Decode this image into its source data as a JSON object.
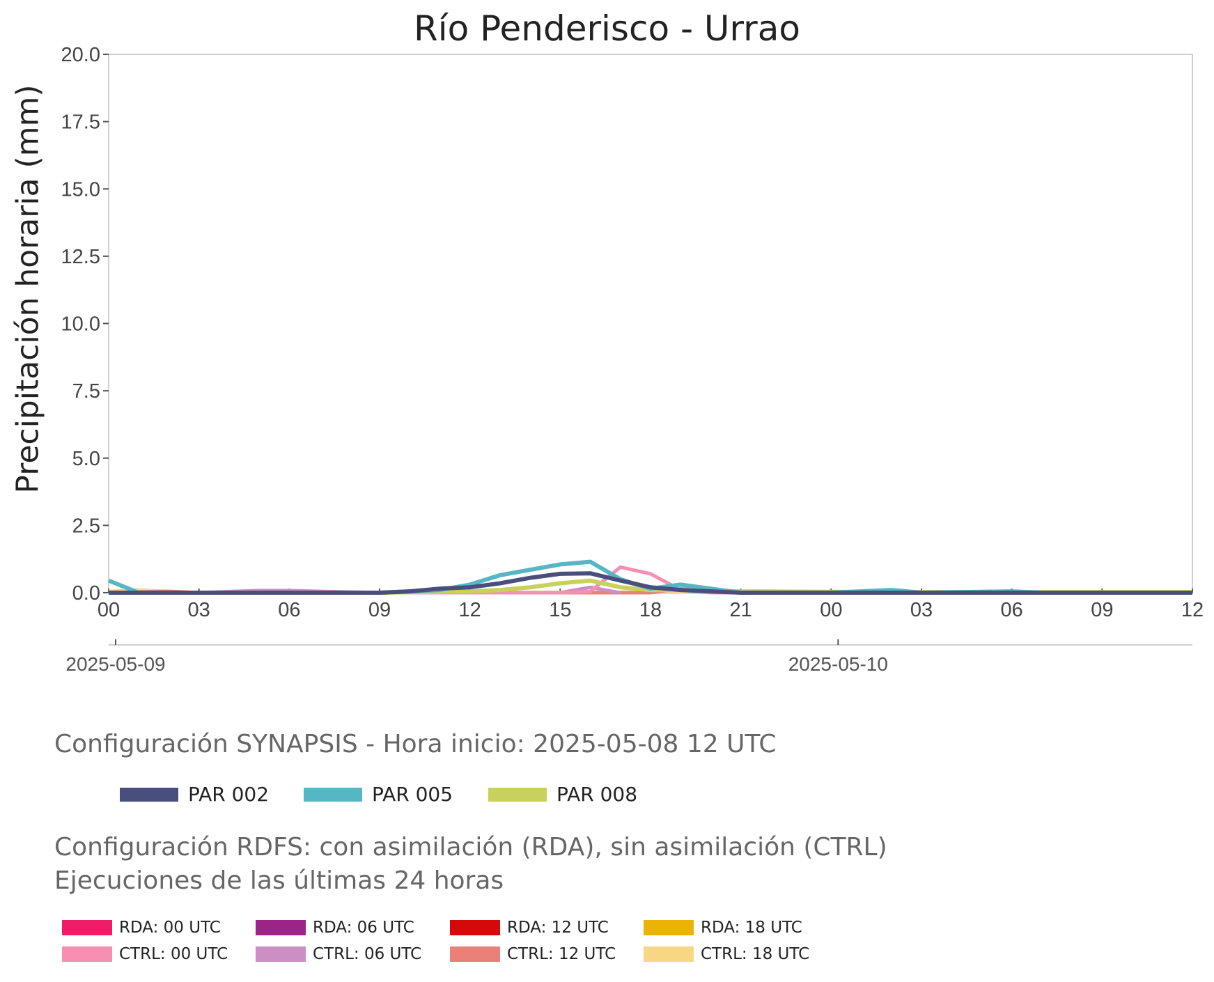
{
  "chart_data": {
    "type": "line",
    "title": "Río Penderisco - Urrao",
    "ylabel": "Precipitación horaria (mm)",
    "ylim": [
      0,
      20
    ],
    "yticks": [
      "0.0",
      "2.5",
      "5.0",
      "7.5",
      "10.0",
      "12.5",
      "15.0",
      "17.5",
      "20.0"
    ],
    "xlim": [
      "2025-05-09 00:00",
      "2025-05-10 12:00"
    ],
    "xtick_labels": [
      "00",
      "03",
      "06",
      "09",
      "12",
      "15",
      "18",
      "21",
      "00",
      "03",
      "06",
      "09",
      "12"
    ],
    "date_labels": [
      "2025-05-09",
      "2025-05-10"
    ],
    "grid": false,
    "series": [
      {
        "name": "PAR 002",
        "color": "#4a4e7e",
        "x": [
          "2025-05-09 00:00",
          "2025-05-09 03:00",
          "2025-05-09 06:00",
          "2025-05-09 09:00",
          "2025-05-09 10:00",
          "2025-05-09 11:00",
          "2025-05-09 12:00",
          "2025-05-09 13:00",
          "2025-05-09 14:00",
          "2025-05-09 15:00",
          "2025-05-09 16:00",
          "2025-05-09 17:00",
          "2025-05-09 18:00",
          "2025-05-09 19:00",
          "2025-05-09 20:00",
          "2025-05-09 21:00",
          "2025-05-10 00:00",
          "2025-05-10 03:00",
          "2025-05-10 06:00",
          "2025-05-10 09:00",
          "2025-05-10 12:00"
        ],
        "y": [
          0.0,
          0.0,
          0.0,
          0.0,
          0.05,
          0.15,
          0.2,
          0.35,
          0.55,
          0.7,
          0.72,
          0.45,
          0.2,
          0.1,
          0.05,
          0.0,
          0.0,
          0.0,
          0.0,
          0.0,
          0.0
        ]
      },
      {
        "name": "PAR 005",
        "color": "#55b6c4",
        "x": [
          "2025-05-09 00:00",
          "2025-05-09 01:00",
          "2025-05-09 03:00",
          "2025-05-09 06:00",
          "2025-05-09 09:00",
          "2025-05-09 10:00",
          "2025-05-09 11:00",
          "2025-05-09 12:00",
          "2025-05-09 13:00",
          "2025-05-09 14:00",
          "2025-05-09 15:00",
          "2025-05-09 16:00",
          "2025-05-09 17:00",
          "2025-05-09 18:00",
          "2025-05-09 19:00",
          "2025-05-09 20:00",
          "2025-05-09 21:00",
          "2025-05-10 00:00",
          "2025-05-10 02:00",
          "2025-05-10 03:00",
          "2025-05-10 06:00",
          "2025-05-10 07:00",
          "2025-05-10 12:00"
        ],
        "y": [
          0.45,
          0.0,
          0.0,
          0.0,
          0.0,
          0.05,
          0.1,
          0.3,
          0.65,
          0.85,
          1.05,
          1.15,
          0.5,
          0.15,
          0.3,
          0.15,
          0.0,
          0.0,
          0.1,
          0.0,
          0.05,
          0.0,
          0.0
        ]
      },
      {
        "name": "PAR 008",
        "color": "#c9d15e",
        "x": [
          "2025-05-09 00:00",
          "2025-05-09 09:00",
          "2025-05-09 12:00",
          "2025-05-09 13:00",
          "2025-05-09 14:00",
          "2025-05-09 15:00",
          "2025-05-09 16:00",
          "2025-05-09 17:00",
          "2025-05-09 18:00",
          "2025-05-09 19:00",
          "2025-05-09 20:00",
          "2025-05-09 21:00",
          "2025-05-10 00:00",
          "2025-05-10 03:00",
          "2025-05-10 06:00",
          "2025-05-10 09:00",
          "2025-05-10 12:00"
        ],
        "y": [
          0.0,
          0.0,
          0.05,
          0.1,
          0.2,
          0.35,
          0.45,
          0.2,
          0.1,
          0.1,
          0.08,
          0.05,
          0.03,
          0.02,
          0.02,
          0.02,
          0.02
        ]
      },
      {
        "name": "CTRL: 00 UTC",
        "color": "#f78fb3",
        "x": [
          "2025-05-09 00:00",
          "2025-05-09 15:00",
          "2025-05-09 16:00",
          "2025-05-09 17:00",
          "2025-05-09 18:00",
          "2025-05-09 19:00",
          "2025-05-09 20:00",
          "2025-05-10 04:00"
        ],
        "y": [
          0.0,
          0.0,
          0.05,
          0.95,
          0.7,
          0.1,
          0.0,
          0.0
        ]
      },
      {
        "name": "CTRL: 06 UTC",
        "color": "#cc8fc3",
        "x": [
          "2025-05-09 00:00",
          "2025-05-09 03:00",
          "2025-05-09 05:00",
          "2025-05-09 06:00",
          "2025-05-09 07:00",
          "2025-05-09 09:00",
          "2025-05-09 15:00",
          "2025-05-09 16:00",
          "2025-05-09 17:00"
        ],
        "y": [
          0.0,
          0.0,
          0.08,
          0.08,
          0.05,
          0.0,
          0.0,
          0.2,
          0.0
        ]
      },
      {
        "name": "CTRL: 12 UTC",
        "color": "#eb8079",
        "x": [
          "2025-05-09 00:00",
          "2025-05-09 02:00",
          "2025-05-09 03:00",
          "2025-05-09 18:00",
          "2025-05-09 19:00",
          "2025-05-09 20:00",
          "2025-05-09 21:00"
        ],
        "y": [
          0.0,
          0.05,
          0.0,
          0.0,
          0.15,
          0.05,
          0.0
        ]
      },
      {
        "name": "CTRL: 18 UTC",
        "color": "#f7d783",
        "x": [
          "2025-05-09 00:00",
          "2025-05-09 01:00",
          "2025-05-09 02:00",
          "2025-05-09 03:00",
          "2025-05-09 21:00",
          "2025-05-10 12:00"
        ],
        "y": [
          0.05,
          0.1,
          0.05,
          0.0,
          0.02,
          0.02
        ]
      }
    ]
  },
  "legend_synapsis": {
    "heading": "Configuración SYNAPSIS - Hora inicio: 2025-05-08 12 UTC",
    "items": [
      {
        "label": "PAR 002",
        "color": "#4a4e7e"
      },
      {
        "label": "PAR 005",
        "color": "#55b6c4"
      },
      {
        "label": "PAR 008",
        "color": "#c9d15e"
      }
    ]
  },
  "legend_rdfs": {
    "heading_line1": "Configuración RDFS: con asimilación (RDA), sin asimilación (CTRL)",
    "heading_line2": " Ejecuciones de las últimas 24 horas",
    "items": [
      {
        "label": "RDA: 00 UTC",
        "color": "#ef1d68"
      },
      {
        "label": "RDA: 06 UTC",
        "color": "#9b2486"
      },
      {
        "label": "RDA: 12 UTC",
        "color": "#d40a0a"
      },
      {
        "label": "RDA: 18 UTC",
        "color": "#ecb306"
      },
      {
        "label": "CTRL: 00 UTC",
        "color": "#f78fb3"
      },
      {
        "label": "CTRL: 06 UTC",
        "color": "#cc8fc3"
      },
      {
        "label": "CTRL: 12 UTC",
        "color": "#eb8079"
      },
      {
        "label": "CTRL: 18 UTC",
        "color": "#f7d783"
      }
    ]
  }
}
